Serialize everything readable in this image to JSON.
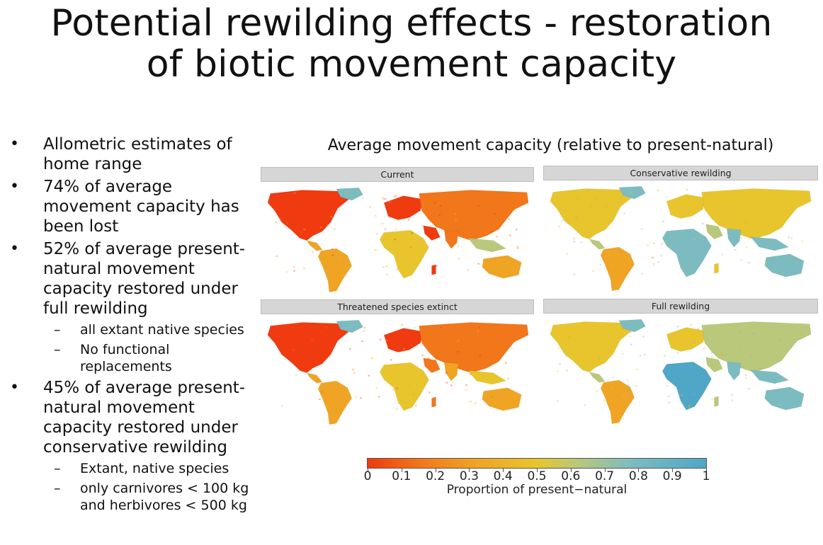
{
  "slide": {
    "title_line1": "Potential rewilding effects - restoration",
    "title_line2": "of biotic movement capacity"
  },
  "bullets": [
    {
      "text": "Allometric estimates of home range"
    },
    {
      "text": "74% of average movement capacity has been lost"
    },
    {
      "text": "52% of average present-natural movement capacity restored under full rewilding",
      "sub": [
        "all extant native species",
        "No functional replacements"
      ]
    },
    {
      "text": "45% of average present-natural movement capacity restored under conservative rewilding",
      "sub": [
        "Extant, native species",
        "only carnivores < 100 kg and herbivores < 500 kg"
      ]
    }
  ],
  "figure": {
    "title": "Average movement capacity (relative to present-natural)",
    "panels": [
      {
        "label": "Current"
      },
      {
        "label": "Conservative rewilding"
      },
      {
        "label": "Threatened species extinct"
      },
      {
        "label": "Full rewilding"
      }
    ],
    "legend": {
      "caption": "Proportion of present−natural",
      "ticks": [
        "0",
        "0.1",
        "0.2",
        "0.3",
        "0.4",
        "0.5",
        "0.6",
        "0.7",
        "0.8",
        "0.9",
        "1"
      ],
      "colors": [
        "#f03a10",
        "#f2761a",
        "#f0a424",
        "#e8c52c",
        "#b9c87a",
        "#7cbcc0",
        "#4fa6c6"
      ]
    }
  }
}
